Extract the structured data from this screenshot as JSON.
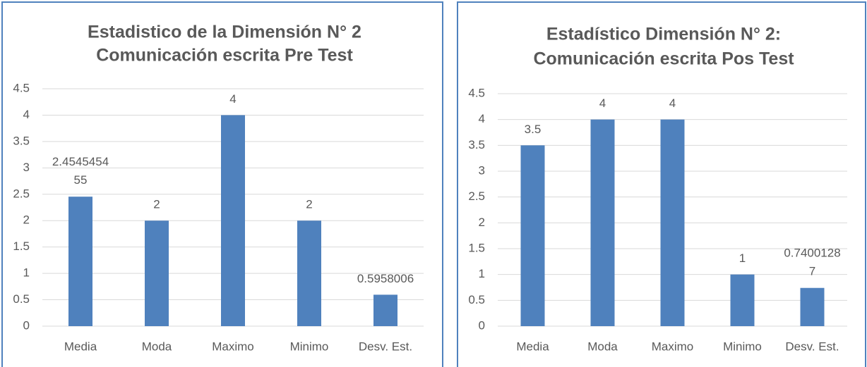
{
  "chart_data": [
    {
      "type": "bar",
      "title": [
        "Estadistico de la Dimensión N° 2",
        "Comunicación escrita Pre Test"
      ],
      "categories": [
        "Media",
        "Moda",
        "Maximo",
        "Minimo",
        "Desv. Est."
      ],
      "values": [
        2.454545455,
        2,
        4,
        2,
        0.5958006
      ],
      "color": "#4f81bd",
      "ylim": [
        0,
        4.5
      ],
      "yticks": [
        0,
        0.5,
        1,
        1.5,
        2,
        2.5,
        3,
        3.5,
        4,
        4.5
      ],
      "grid": true
    },
    {
      "type": "bar",
      "title": [
        "Estadístico Dimensión N° 2:",
        "Comunicación  escrita Pos Test"
      ],
      "categories": [
        "Media",
        "Moda",
        "Maximo",
        "Minimo",
        "Desv. Est."
      ],
      "values": [
        3.5,
        4,
        4,
        1,
        0.74001287
      ],
      "color": "#4f81bd",
      "ylim": [
        0,
        4.5
      ],
      "yticks": [
        0,
        0.5,
        1,
        1.5,
        2,
        2.5,
        3,
        3.5,
        4,
        4.5
      ],
      "grid": true
    }
  ]
}
